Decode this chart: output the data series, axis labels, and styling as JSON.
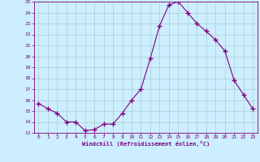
{
  "x": [
    0,
    1,
    2,
    3,
    4,
    5,
    6,
    7,
    8,
    9,
    10,
    11,
    12,
    13,
    14,
    15,
    16,
    17,
    18,
    19,
    20,
    21,
    22,
    23
  ],
  "y": [
    15.7,
    15.2,
    14.8,
    14.0,
    14.0,
    13.2,
    13.3,
    13.8,
    13.8,
    14.8,
    16.0,
    17.0,
    19.8,
    22.8,
    24.7,
    25.0,
    24.0,
    23.0,
    22.3,
    21.5,
    20.5,
    17.8,
    16.5,
    15.2
  ],
  "xlabel": "Windchill (Refroidissement éolien,°C)",
  "xlim": [
    -0.5,
    23.5
  ],
  "ylim": [
    13,
    25
  ],
  "yticks": [
    13,
    14,
    15,
    16,
    17,
    18,
    19,
    20,
    21,
    22,
    23,
    24,
    25
  ],
  "xticks": [
    0,
    1,
    2,
    3,
    4,
    5,
    6,
    7,
    8,
    9,
    10,
    11,
    12,
    13,
    14,
    15,
    16,
    17,
    18,
    19,
    20,
    21,
    22,
    23
  ],
  "line_color": "#800080",
  "marker_color": "#800080",
  "bg_color": "#cceeff",
  "grid_color": "#aacccc"
}
